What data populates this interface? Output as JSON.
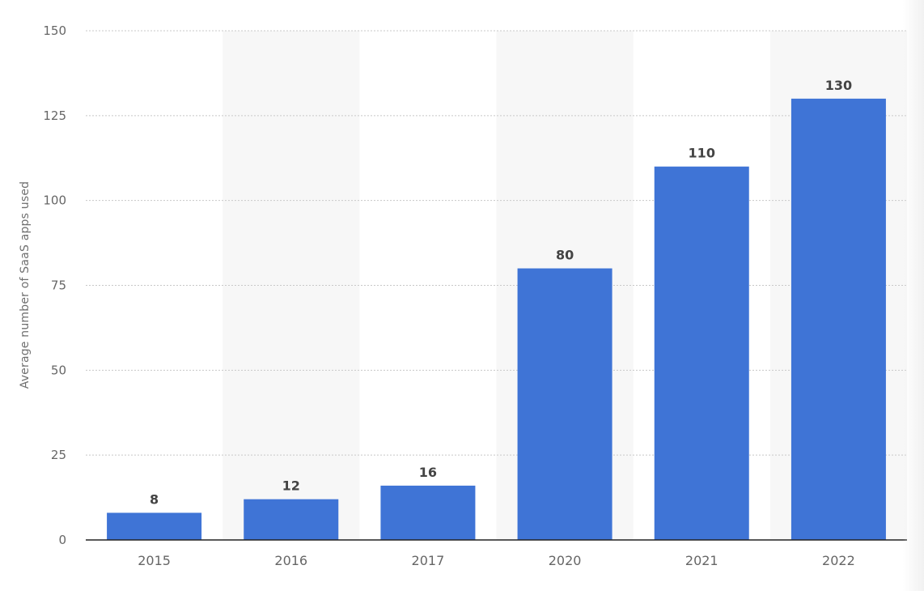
{
  "chart_data": {
    "type": "bar",
    "categories": [
      "2015",
      "2016",
      "2017",
      "2020",
      "2021",
      "2022"
    ],
    "values": [
      8,
      12,
      16,
      80,
      110,
      130
    ],
    "data_labels": [
      "8",
      "12",
      "16",
      "80",
      "110",
      "130"
    ],
    "title": "",
    "xlabel": "",
    "ylabel": "Average number of SaaS apps used",
    "ylim": [
      0,
      150
    ],
    "yticks": [
      0,
      25,
      50,
      75,
      100,
      125,
      150
    ],
    "ytick_labels": [
      "0",
      "25",
      "50",
      "75",
      "100",
      "125",
      "150"
    ],
    "grid": true,
    "alternating_column_shading": true,
    "legend": "none",
    "colors": {
      "bar": "#3f74d6",
      "grid": "#c8c8c8",
      "axis": "#222222",
      "band": "#f7f7f7",
      "tick_text": "#666666",
      "value_text": "#444444"
    }
  }
}
